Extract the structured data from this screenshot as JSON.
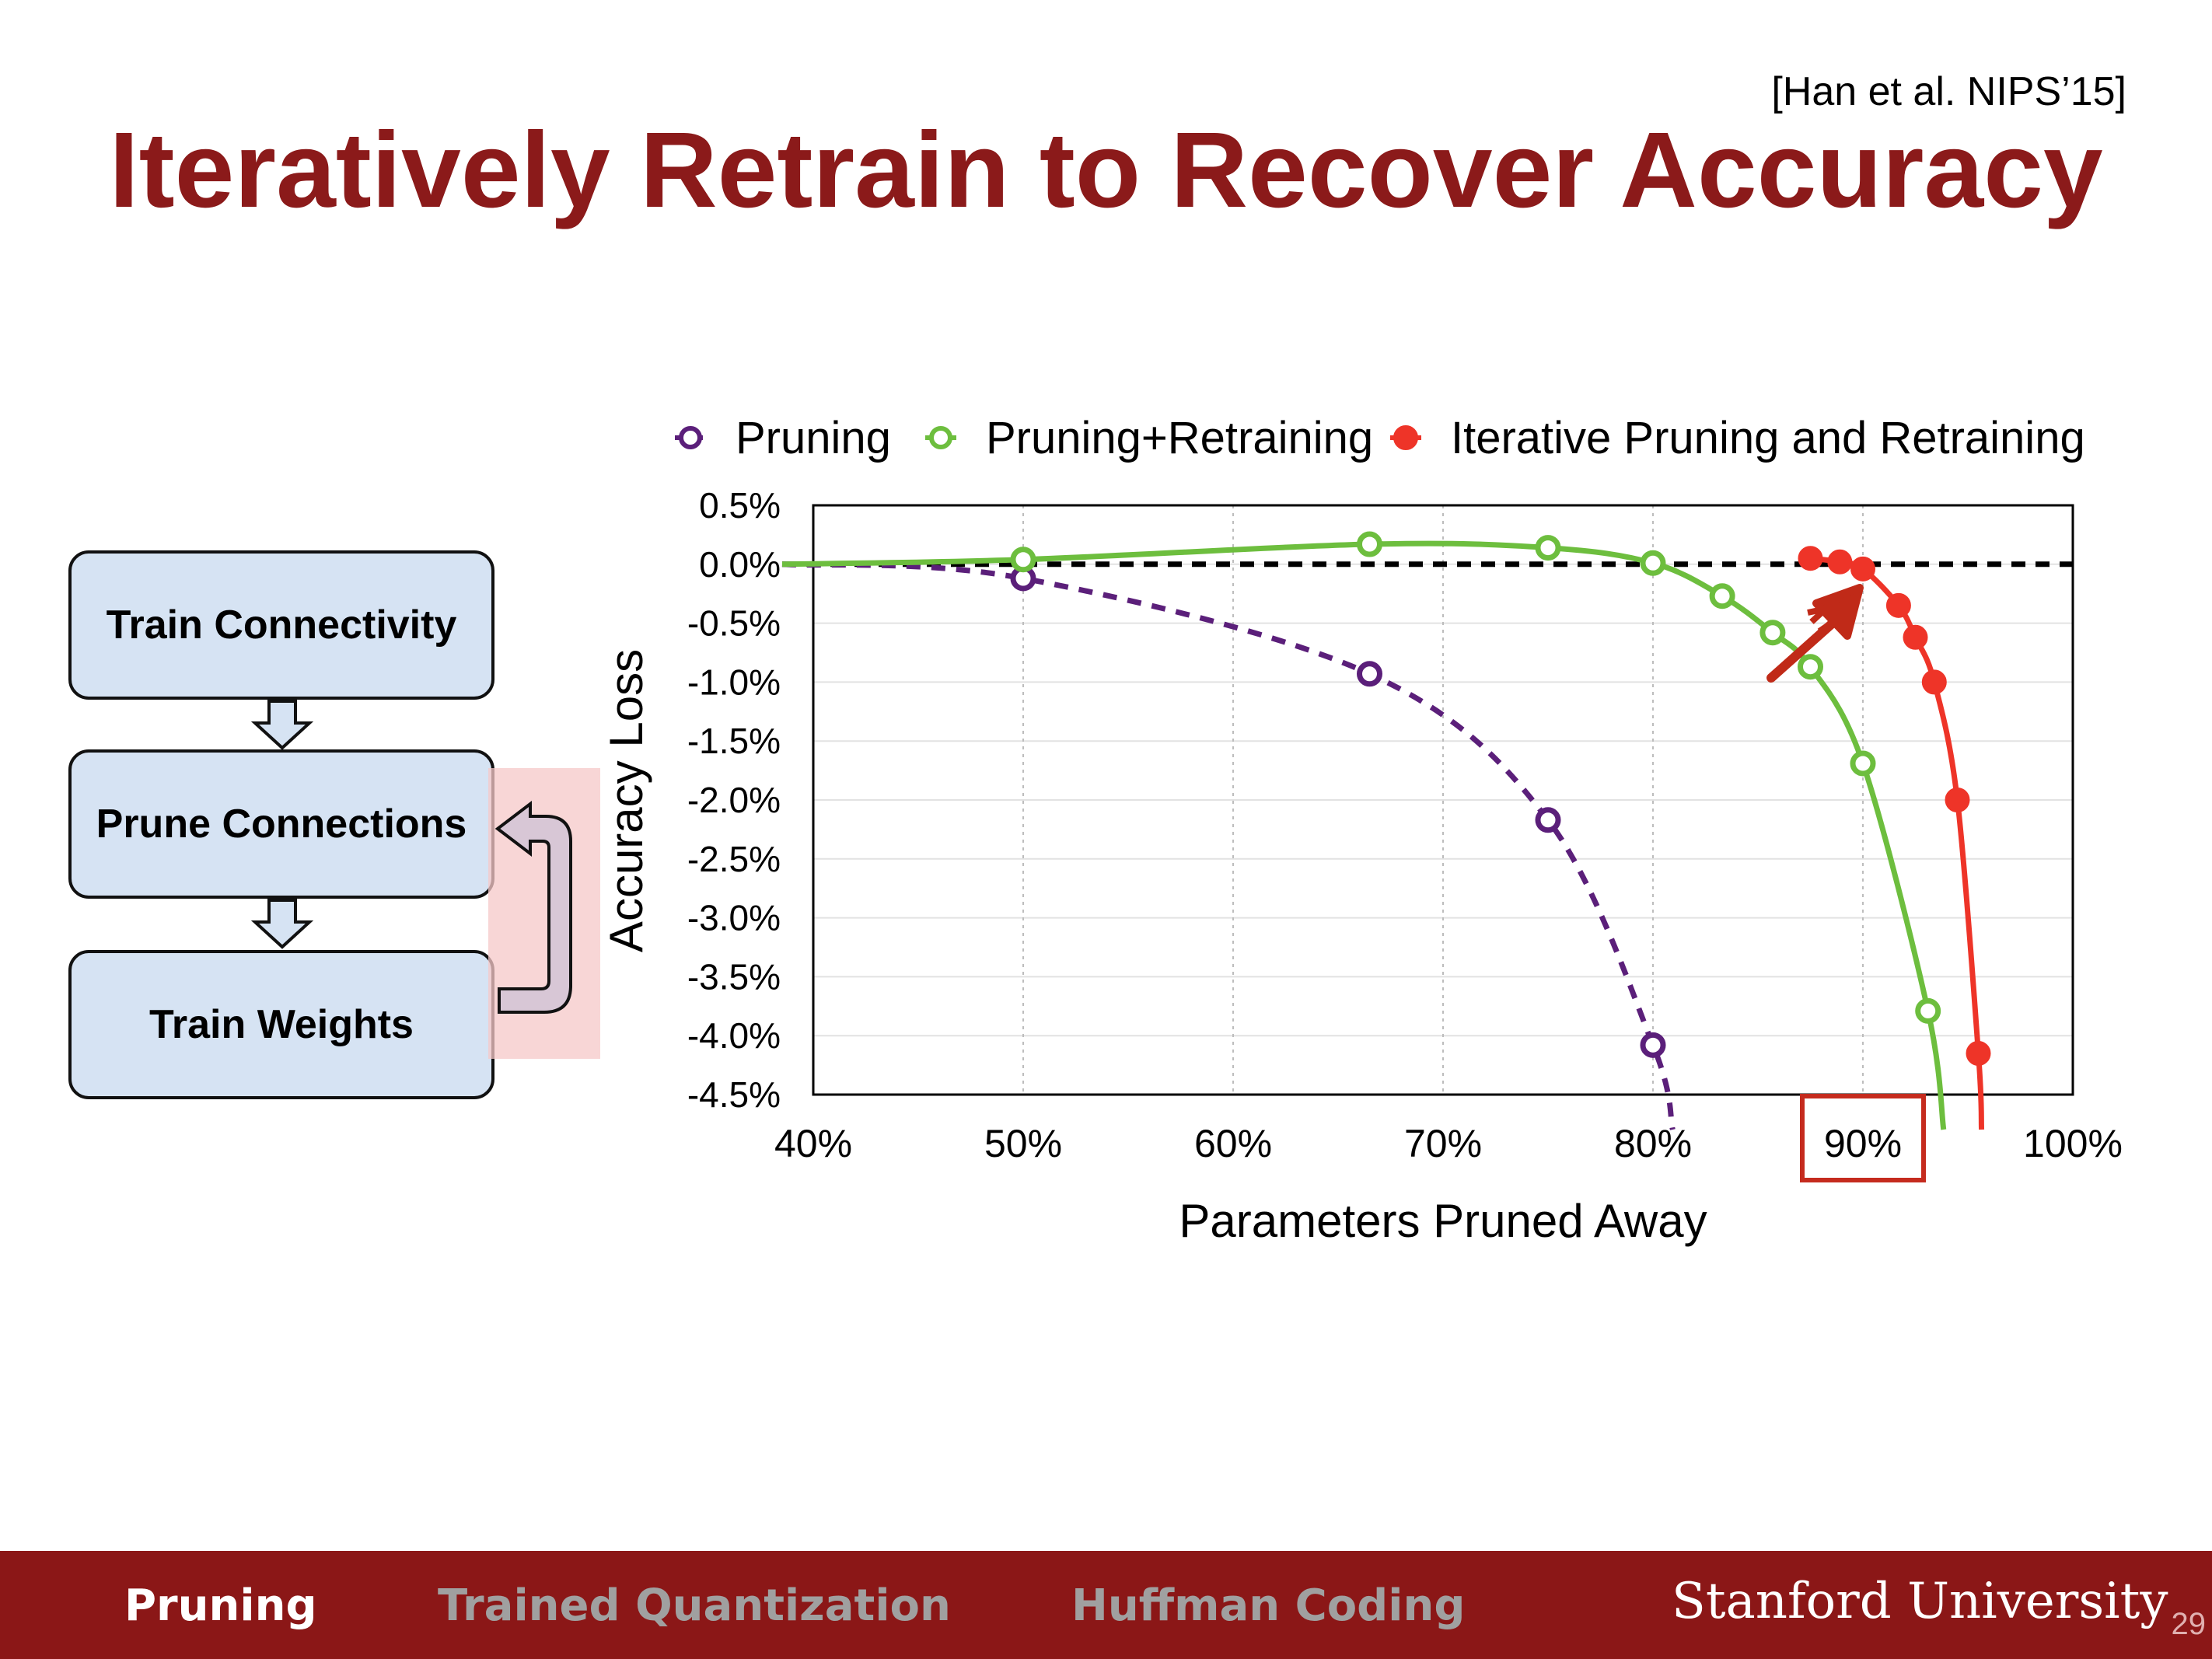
{
  "citation": "[Han et al. NIPS’15]",
  "title": "Iteratively Retrain to Recover Accuracy",
  "flow": {
    "step1": "Train Connectivity",
    "step2": "Prune Connections",
    "step3": "Train Weights"
  },
  "chart_data": {
    "type": "line",
    "title": "",
    "xlabel": "Parameters Pruned Away",
    "ylabel": "Accuracy Loss",
    "xlim": [
      40,
      100
    ],
    "ylim": [
      -4.5,
      0.5
    ],
    "x_ticks": [
      "40%",
      "50%",
      "60%",
      "70%",
      "80%",
      "90%",
      "100%"
    ],
    "y_ticks": [
      "0.5%",
      "0.0%",
      "-0.5%",
      "-1.0%",
      "-1.5%",
      "-2.0%",
      "-2.5%",
      "-3.0%",
      "-3.5%",
      "-4.0%",
      "-4.5%"
    ],
    "grid": "vertical",
    "legend_position": "top",
    "baseline": 0.0,
    "highlight_tick": "90%",
    "series": [
      {
        "name": "Pruning",
        "color": "#5b1f7a",
        "style": "dashed",
        "marker": "open-circle",
        "x": [
          50,
          66.5,
          75,
          80
        ],
        "y": [
          -0.12,
          -0.93,
          -2.17,
          -4.08
        ]
      },
      {
        "name": "Pruning+Retraining",
        "color": "#6dbe3e",
        "style": "solid",
        "marker": "open-circle",
        "x": [
          50,
          66.5,
          75,
          80,
          83.3,
          85.7,
          87.5,
          90,
          93.1
        ],
        "y": [
          0.04,
          0.17,
          0.14,
          0.01,
          -0.27,
          -0.58,
          -0.87,
          -1.69,
          -3.79
        ]
      },
      {
        "name": "Iterative Pruning and Retraining",
        "color": "#ee3428",
        "style": "solid",
        "marker": "filled-circle",
        "x": [
          87.5,
          88.9,
          90,
          91.7,
          92.5,
          93.4,
          94.5,
          95.5
        ],
        "y": [
          0.05,
          0.02,
          -0.04,
          -0.35,
          -0.62,
          -1.0,
          -2.0,
          -4.15
        ]
      }
    ]
  },
  "footer": {
    "tab1": "Pruning",
    "tab2": "Trained Quantization",
    "tab3": "Huffman Coding",
    "brand": "Stanford University",
    "page": "29"
  }
}
